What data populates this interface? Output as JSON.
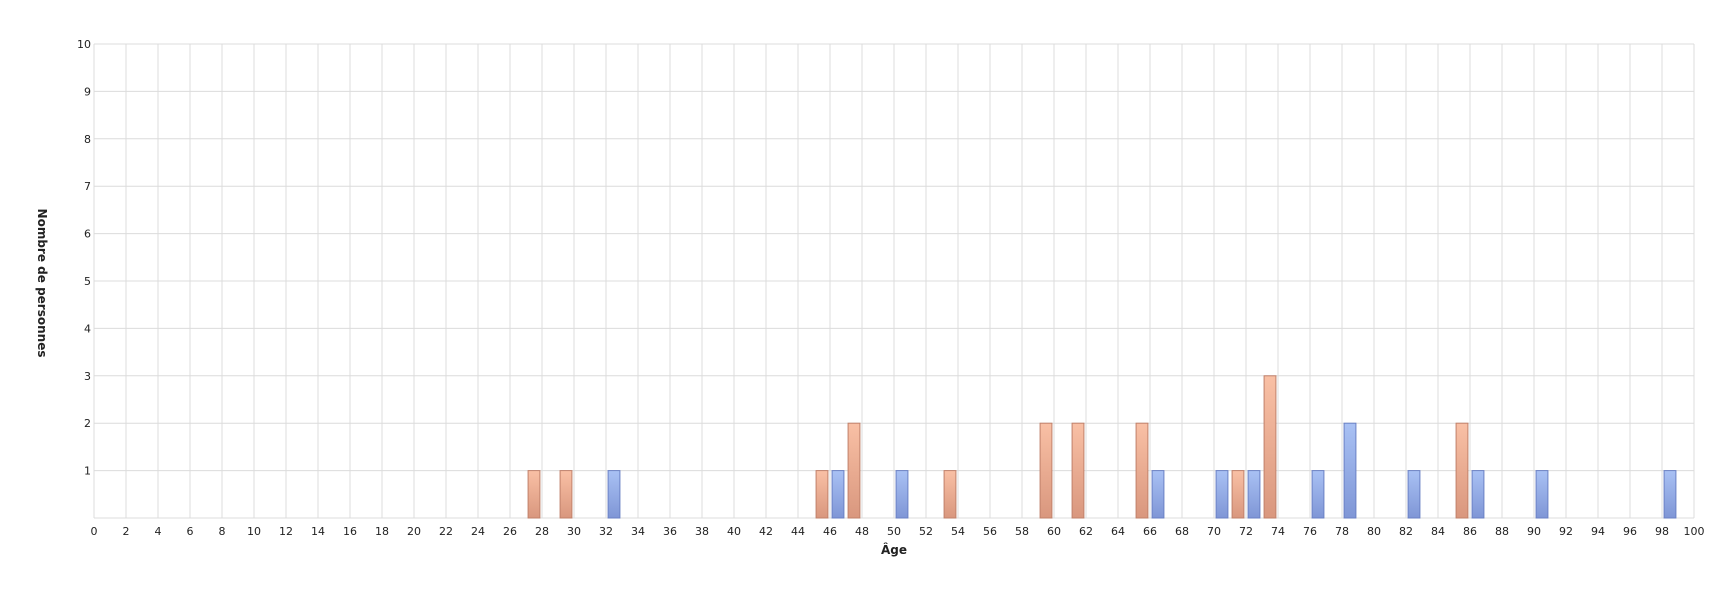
{
  "chart_data": {
    "type": "bar",
    "title": "",
    "xlabel": "Âge",
    "ylabel": "Nombre de personnes",
    "xlim": [
      0,
      100
    ],
    "ylim": [
      0,
      10
    ],
    "x_tick_step": 2,
    "y_ticks": [
      1,
      2,
      3,
      4,
      5,
      6,
      7,
      8,
      9,
      10
    ],
    "grid": true,
    "legend": "none",
    "colors": {
      "blue_fill_top": "#a9c1f4",
      "blue_fill_bottom": "#7f96d6",
      "blue_stroke": "#6a80c4",
      "orange_fill_top": "#f9c0a5",
      "orange_fill_bottom": "#d9977e",
      "orange_stroke": "#c0806a",
      "grid": "#dcdcdc"
    },
    "series": [
      {
        "color_key": "orange",
        "x": [
          27,
          29,
          45,
          47,
          53,
          59,
          61,
          65,
          71,
          73,
          85
        ],
        "values": [
          1,
          1,
          1,
          2,
          1,
          2,
          2,
          2,
          1,
          3,
          2
        ]
      },
      {
        "color_key": "blue",
        "x": [
          32,
          46,
          50,
          66,
          70,
          72,
          76,
          78,
          82,
          86,
          90,
          98
        ],
        "values": [
          1,
          1,
          1,
          1,
          1,
          1,
          1,
          2,
          1,
          1,
          1,
          1
        ]
      }
    ]
  }
}
